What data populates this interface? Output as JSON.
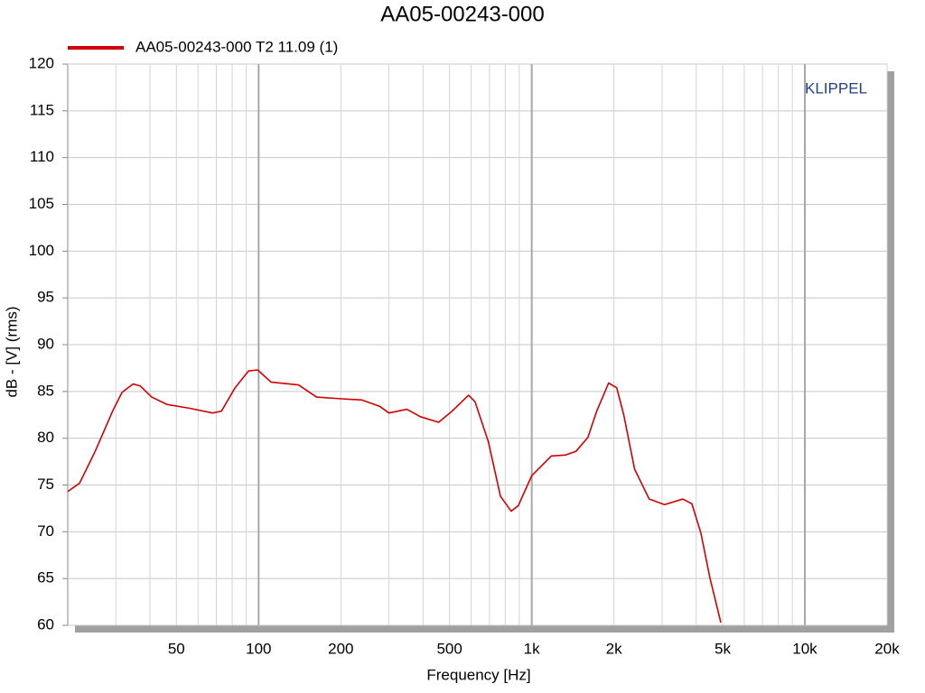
{
  "chart_data": {
    "type": "line",
    "title": "AA05-00243-000",
    "x_label": "Frequency [Hz]",
    "y_label": "dB - [V] (rms)",
    "annotation": "KLIPPEL",
    "log_x": true,
    "grid": true,
    "legend": "top-left",
    "xlim": [
      20,
      20000
    ],
    "ylim": [
      60,
      120
    ],
    "xticks": [
      50,
      100,
      200,
      500,
      {
        "value": 1000,
        "label": "1k"
      },
      {
        "value": 2000,
        "label": "2k"
      },
      {
        "value": 5000,
        "label": "5k"
      },
      {
        "value": 10000,
        "label": "10k"
      },
      {
        "value": 20000,
        "label": "20k"
      }
    ],
    "xminorticks": [
      30,
      40,
      60,
      70,
      80,
      90,
      300,
      400,
      600,
      700,
      800,
      900,
      3000,
      4000,
      6000,
      7000,
      8000,
      9000
    ],
    "yticks": [
      60,
      65,
      70,
      75,
      80,
      85,
      90,
      95,
      100,
      105,
      110,
      115,
      120
    ],
    "x": [
      20,
      22.1,
      25.2,
      29.3,
      31.6,
      34.7,
      36.8,
      40.6,
      46.3,
      56,
      67.8,
      73.1,
      82,
      91.9,
      99.2,
      111,
      140,
      163,
      205,
      238,
      278,
      300,
      349,
      391,
      456,
      511,
      587,
      620,
      694,
      768,
      841,
      893,
      1000,
      1180,
      1327,
      1452,
      1606,
      1730,
      1912,
      2047,
      2172,
      2380,
      2692,
      3063,
      3572,
      3856,
      4160,
      4490,
      4925
    ],
    "series": [
      {
        "name": "AA05-00243-000 T2 11.09 (1)",
        "color": "#d40000",
        "values": [
          74.3,
          75.2,
          78.6,
          83.0,
          84.9,
          85.8,
          85.6,
          84.4,
          83.6,
          83.2,
          82.7,
          82.9,
          85.4,
          87.2,
          87.3,
          86.0,
          85.7,
          84.4,
          84.2,
          84.1,
          83.4,
          82.7,
          83.1,
          82.3,
          81.7,
          82.9,
          84.6,
          83.9,
          79.6,
          73.8,
          72.2,
          72.8,
          76.0,
          78.1,
          78.2,
          78.6,
          80.1,
          82.9,
          85.9,
          85.4,
          82.5,
          76.7,
          73.5,
          72.9,
          73.5,
          73.0,
          69.9,
          65.1,
          60.3
        ]
      }
    ]
  }
}
